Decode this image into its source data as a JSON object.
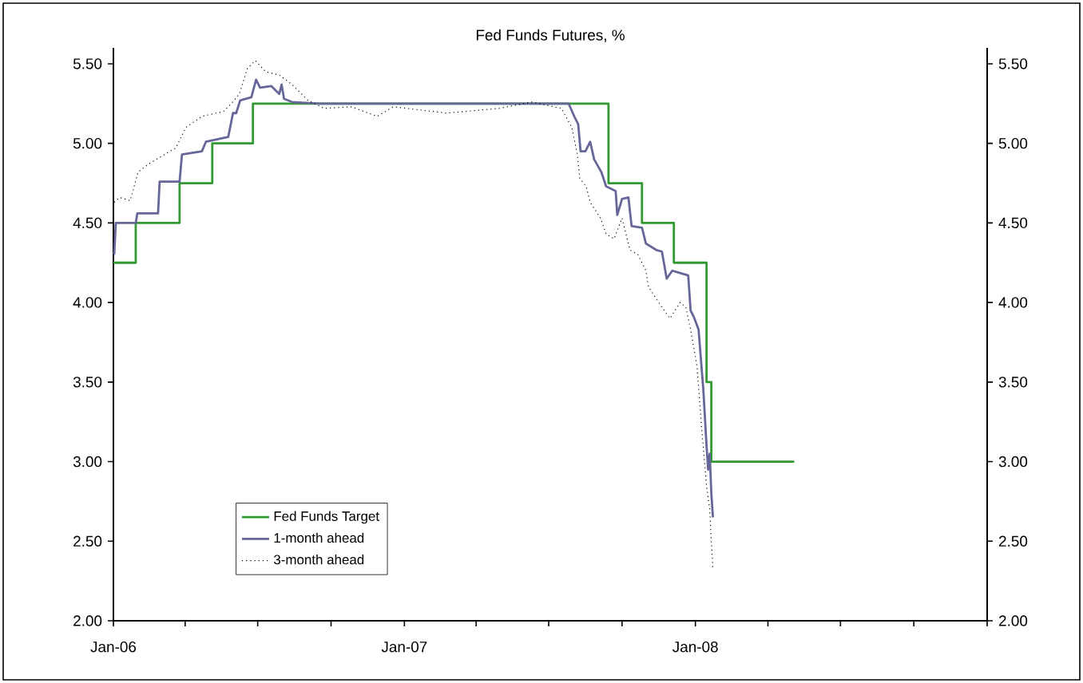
{
  "chart_data": {
    "type": "line",
    "title": "Fed Funds Futures, %",
    "xlim": [
      "2006-01",
      "2009-01"
    ],
    "xticks": [
      {
        "value": "2006-01",
        "label": "Jan-06"
      },
      {
        "value": "2006-04",
        "label": null
      },
      {
        "value": "2006-07",
        "label": null
      },
      {
        "value": "2006-10",
        "label": null
      },
      {
        "value": "2007-01",
        "label": "Jan-07"
      },
      {
        "value": "2007-04",
        "label": null
      },
      {
        "value": "2007-07",
        "label": null
      },
      {
        "value": "2007-10",
        "label": null
      },
      {
        "value": "2008-01",
        "label": "Jan-08"
      },
      {
        "value": "2008-04",
        "label": null
      },
      {
        "value": "2008-07",
        "label": null
      },
      {
        "value": "2008-10",
        "label": null
      },
      {
        "value": "2009-01",
        "label": null
      }
    ],
    "ylim": [
      2.0,
      5.6
    ],
    "yticks": [
      {
        "value": 2.0,
        "label": "2.00"
      },
      {
        "value": 2.5,
        "label": "2.50"
      },
      {
        "value": 3.0,
        "label": "3.00"
      },
      {
        "value": 3.5,
        "label": "3.50"
      },
      {
        "value": 4.0,
        "label": "4.00"
      },
      {
        "value": 4.5,
        "label": "4.50"
      },
      {
        "value": 5.0,
        "label": "5.00"
      },
      {
        "value": 5.5,
        "label": "5.50"
      }
    ],
    "y2lim": [
      2.0,
      5.6
    ],
    "y2ticks": [
      {
        "value": 2.0,
        "label": "2.00"
      },
      {
        "value": 2.5,
        "label": "2.50"
      },
      {
        "value": 3.0,
        "label": "3.00"
      },
      {
        "value": 3.5,
        "label": "3.50"
      },
      {
        "value": 4.0,
        "label": "4.00"
      },
      {
        "value": 4.5,
        "label": "4.50"
      },
      {
        "value": 5.0,
        "label": "5.00"
      },
      {
        "value": 5.5,
        "label": "5.50"
      }
    ],
    "legend": "bottom left",
    "series": [
      {
        "name": "Fed Funds Target",
        "type": "step",
        "color": "#339933",
        "x": [
          "2006-01-01",
          "2006-01-29",
          "2006-03-25",
          "2006-05-05",
          "2006-06-25",
          "2007-09-14",
          "2007-10-26",
          "2007-12-05",
          "2008-01-15",
          "2008-01-21",
          "2008-05-04"
        ],
        "values": [
          4.25,
          4.5,
          4.75,
          5.0,
          5.25,
          4.75,
          4.5,
          4.25,
          3.5,
          3.0,
          3.0
        ]
      },
      {
        "name": "1-month ahead",
        "color": "#666699",
        "x": [
          "2006-01-02",
          "2006-01-04",
          "2006-01-29",
          "2006-01-31",
          "2006-02-26",
          "2006-02-28",
          "2006-03-25",
          "2006-03-28",
          "2006-04-22",
          "2006-04-27",
          "2006-05-25",
          "2006-05-31",
          "2006-06-04",
          "2006-06-09",
          "2006-06-23",
          "2006-06-29",
          "2006-07-04",
          "2006-07-18",
          "2006-07-28",
          "2006-07-31",
          "2006-08-03",
          "2006-08-13",
          "2006-09-16",
          "2007-07-26",
          "2007-08-02",
          "2007-08-07",
          "2007-08-10",
          "2007-08-16",
          "2007-08-22",
          "2007-08-27",
          "2007-09-05",
          "2007-09-11",
          "2007-09-23",
          "2007-09-25",
          "2007-10-01",
          "2007-10-09",
          "2007-10-13",
          "2007-10-26",
          "2007-10-31",
          "2007-11-13",
          "2007-11-20",
          "2007-11-26",
          "2007-12-03",
          "2007-12-16",
          "2007-12-23",
          "2007-12-26",
          "2007-12-30",
          "2008-01-05",
          "2008-01-11",
          "2008-01-15",
          "2008-01-17",
          "2008-01-19",
          "2008-01-21",
          "2008-01-23"
        ],
        "values": [
          4.3,
          4.5,
          4.5,
          4.56,
          4.56,
          4.76,
          4.76,
          4.93,
          4.95,
          5.01,
          5.04,
          5.19,
          5.19,
          5.27,
          5.29,
          5.4,
          5.35,
          5.36,
          5.31,
          5.37,
          5.28,
          5.26,
          5.25,
          5.25,
          5.17,
          5.12,
          4.95,
          4.95,
          5.01,
          4.9,
          4.82,
          4.73,
          4.7,
          4.55,
          4.65,
          4.66,
          4.48,
          4.47,
          4.37,
          4.33,
          4.32,
          4.15,
          4.2,
          4.18,
          4.17,
          3.95,
          3.91,
          3.83,
          3.45,
          3.1,
          2.95,
          3.05,
          2.8,
          2.65
        ]
      },
      {
        "name": "3-month ahead",
        "color": "#000000",
        "line_style": "dotted",
        "x": [
          "2006-01-02",
          "2006-01-09",
          "2006-01-22",
          "2006-02-01",
          "2006-02-14",
          "2006-03-06",
          "2006-03-20",
          "2006-04-02",
          "2006-04-22",
          "2006-05-19",
          "2006-05-29",
          "2006-06-08",
          "2006-06-18",
          "2006-06-28",
          "2006-07-11",
          "2006-07-28",
          "2006-08-13",
          "2006-09-02",
          "2006-09-22",
          "2006-10-26",
          "2006-11-28",
          "2006-12-18",
          "2007-02-23",
          "2007-04-30",
          "2007-06-09",
          "2007-07-17",
          "2007-07-30",
          "2007-08-06",
          "2007-08-09",
          "2007-08-17",
          "2007-08-22",
          "2007-09-04",
          "2007-09-11",
          "2007-09-21",
          "2007-10-01",
          "2007-10-11",
          "2007-10-21",
          "2007-10-31",
          "2007-11-03",
          "2007-11-16",
          "2007-11-30",
          "2007-12-13",
          "2007-12-20",
          "2007-12-26",
          "2008-01-03",
          "2008-01-09",
          "2008-01-15",
          "2008-01-19",
          "2008-01-21",
          "2008-01-23"
        ],
        "values": [
          4.63,
          4.66,
          4.64,
          4.82,
          4.87,
          4.93,
          4.97,
          5.1,
          5.17,
          5.2,
          5.25,
          5.31,
          5.47,
          5.52,
          5.45,
          5.43,
          5.37,
          5.27,
          5.22,
          5.23,
          5.17,
          5.23,
          5.19,
          5.22,
          5.26,
          5.22,
          5.1,
          4.93,
          4.78,
          4.73,
          4.63,
          4.53,
          4.43,
          4.4,
          4.53,
          4.33,
          4.3,
          4.2,
          4.1,
          4.0,
          3.9,
          4.0,
          3.97,
          3.83,
          3.6,
          3.2,
          2.85,
          2.7,
          2.5,
          2.32
        ]
      }
    ]
  }
}
